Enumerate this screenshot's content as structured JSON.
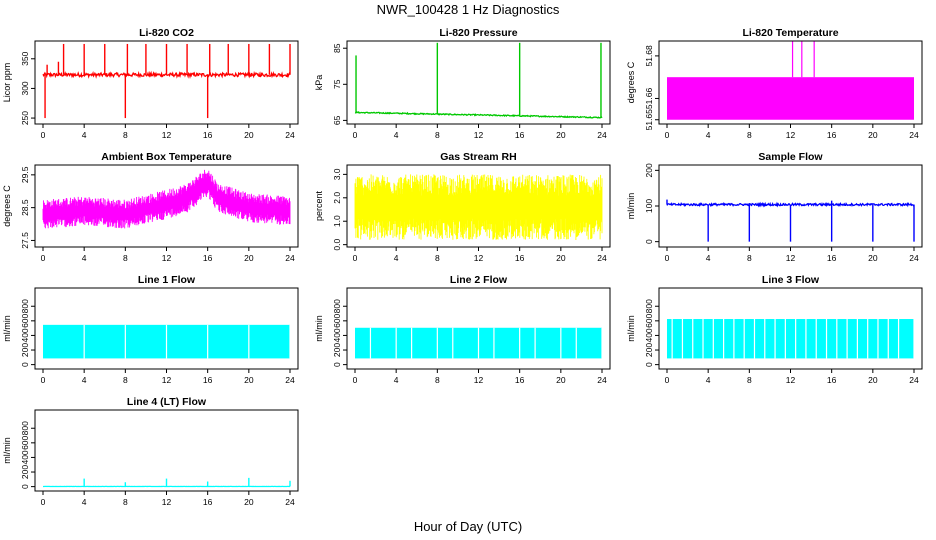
{
  "figure": {
    "title": "NWR_100428  1 Hz Diagnostics",
    "xlabel": "Hour of Day (UTC)"
  },
  "x_axis": {
    "range": [
      0,
      24
    ],
    "ticks": [
      "0",
      "4",
      "8",
      "12",
      "16",
      "20",
      "24"
    ]
  },
  "chart_data": [
    {
      "type": "line",
      "title": "Li-820 CO2",
      "ylabel": "Licor ppm",
      "ylim": [
        240,
        380
      ],
      "yticks": [
        {
          "value": 250,
          "label": "250"
        },
        {
          "value": 300,
          "label": "300"
        },
        {
          "value": 350,
          "label": "350"
        }
      ],
      "color": "#ff0000",
      "series": [
        {
          "baseline": 323,
          "noise": 3,
          "spikes": [
            [
              0.2,
              250
            ],
            [
              0.4,
              340
            ],
            [
              1.5,
              345
            ],
            [
              2,
              375
            ],
            [
              4,
              375
            ],
            [
              6,
              375
            ],
            [
              8,
              250
            ],
            [
              8.2,
              375
            ],
            [
              10,
              375
            ],
            [
              12,
              375
            ],
            [
              14,
              375
            ],
            [
              16,
              250
            ],
            [
              16.2,
              375
            ],
            [
              18,
              375
            ],
            [
              20,
              375
            ],
            [
              22,
              375
            ],
            [
              24,
              375
            ]
          ]
        }
      ]
    },
    {
      "type": "line",
      "title": "Li-820 Pressure",
      "ylabel": "kPa",
      "ylim": [
        64,
        87
      ],
      "yticks": [
        {
          "value": 65,
          "label": "65"
        },
        {
          "value": 75,
          "label": "75"
        },
        {
          "value": 85,
          "label": "85"
        }
      ],
      "color": "#00c800",
      "series": [
        {
          "start": 67.2,
          "end": 65.8,
          "noise": 0.15,
          "spikes": [
            [
              0.1,
              83
            ],
            [
              8,
              86.5
            ],
            [
              16,
              86.5
            ],
            [
              23.9,
              86.5
            ]
          ]
        }
      ]
    },
    {
      "type": "area",
      "title": "Li-820 Temperature",
      "ylabel": "degrees C",
      "ylim": [
        51.648,
        51.687
      ],
      "yticks": [
        {
          "value": 51.65,
          "label": "51.65"
        },
        {
          "value": 51.66,
          "label": "51.66"
        },
        {
          "value": 51.68,
          "label": "51.68"
        }
      ],
      "color": "#ff00ff",
      "series": [
        {
          "band": [
            51.65,
            51.67
          ],
          "spikes": [
            [
              12.2,
              51.687
            ],
            [
              13.1,
              51.687
            ],
            [
              14.3,
              51.687
            ]
          ]
        }
      ]
    },
    {
      "type": "area",
      "title": "Ambient Box Temperature",
      "ylabel": "degrees C",
      "ylim": [
        27.3,
        29.8
      ],
      "yticks": [
        {
          "value": 27.5,
          "label": "27.5"
        },
        {
          "value": 28.5,
          "label": "28.5"
        },
        {
          "value": 29.5,
          "label": "29.5"
        }
      ],
      "color": "#ff00ff",
      "series": [
        {
          "trend": [
            [
              0,
              28.3
            ],
            [
              4,
              28.4
            ],
            [
              8,
              28.3
            ],
            [
              12,
              28.6
            ],
            [
              14,
              28.8
            ],
            [
              16,
              29.3
            ],
            [
              17,
              28.8
            ],
            [
              20,
              28.5
            ],
            [
              24,
              28.4
            ]
          ],
          "spread": 0.45
        }
      ]
    },
    {
      "type": "area",
      "title": "Gas Stream RH",
      "ylabel": "percent",
      "ylim": [
        -0.1,
        3.4
      ],
      "yticks": [
        {
          "value": 0.0,
          "label": "0.0"
        },
        {
          "value": 1.0,
          "label": "1.0"
        },
        {
          "value": 2.0,
          "label": "2.0"
        },
        {
          "value": 3.0,
          "label": "3.0"
        }
      ],
      "color": "#ffff00",
      "series": [
        {
          "trend": [
            [
              0,
              1.6
            ],
            [
              24,
              1.6
            ]
          ],
          "spread": 1.4
        }
      ]
    },
    {
      "type": "line",
      "title": "Sample Flow",
      "ylabel": "ml/min",
      "ylim": [
        -15,
        215
      ],
      "yticks": [
        {
          "value": 0,
          "label": "0"
        },
        {
          "value": 100,
          "label": "100"
        },
        {
          "value": 200,
          "label": "200"
        }
      ],
      "color": "#0000ff",
      "series": [
        {
          "baseline": 104,
          "noise": 3,
          "spikes": [
            [
              0,
              118
            ],
            [
              4,
              0
            ],
            [
              8,
              0
            ],
            [
              12,
              0
            ],
            [
              16,
              0
            ],
            [
              16,
              115
            ],
            [
              20,
              0
            ],
            [
              24,
              0
            ]
          ]
        }
      ]
    },
    {
      "type": "area",
      "title": "Line 1 Flow",
      "ylabel": "ml/min",
      "ylim": [
        -60,
        1050
      ],
      "yticks": [
        {
          "value": 0,
          "label": "0"
        },
        {
          "value": 200,
          "label": "200"
        },
        {
          "value": 400,
          "label": "400"
        },
        {
          "value": 600,
          "label": "600"
        },
        {
          "value": 800,
          "label": "800"
        }
      ],
      "color": "#00ffff",
      "series": [
        {
          "band": [
            85,
            545
          ],
          "gaps": [
            4,
            8,
            12,
            16,
            20,
            24
          ]
        }
      ]
    },
    {
      "type": "area",
      "title": "Line 2 Flow",
      "ylabel": "ml/min",
      "ylim": [
        -60,
        1050
      ],
      "yticks": [
        {
          "value": 0,
          "label": "0"
        },
        {
          "value": 200,
          "label": "200"
        },
        {
          "value": 400,
          "label": "400"
        },
        {
          "value": 600,
          "label": "600"
        },
        {
          "value": 800,
          "label": "800"
        }
      ],
      "color": "#00ffff",
      "series": [
        {
          "band": [
            85,
            505
          ],
          "gaps": [
            1.5,
            4,
            5.5,
            8,
            9.5,
            12,
            13.5,
            16,
            17.5,
            20,
            21.5,
            24
          ]
        }
      ]
    },
    {
      "type": "area",
      "title": "Line 3 Flow",
      "ylabel": "ml/min",
      "ylim": [
        -60,
        1050
      ],
      "yticks": [
        {
          "value": 0,
          "label": "0"
        },
        {
          "value": 200,
          "label": "200"
        },
        {
          "value": 400,
          "label": "400"
        },
        {
          "value": 600,
          "label": "600"
        },
        {
          "value": 800,
          "label": "800"
        }
      ],
      "color": "#00ffff",
      "series": [
        {
          "band": [
            85,
            625
          ],
          "gaps": [
            0.5,
            1.5,
            2.5,
            3.5,
            4.5,
            5.5,
            6.5,
            7.5,
            8.5,
            9.5,
            10.5,
            11.5,
            12.5,
            13.5,
            14.5,
            15.5,
            16.5,
            17.5,
            18.5,
            19.5,
            20.5,
            21.5,
            22.5,
            24
          ]
        }
      ]
    },
    {
      "type": "line",
      "title": "Line 4 (LT) Flow",
      "ylabel": "ml/min",
      "ylim": [
        -60,
        1050
      ],
      "yticks": [
        {
          "value": 0,
          "label": "0"
        },
        {
          "value": 200,
          "label": "200"
        },
        {
          "value": 400,
          "label": "400"
        },
        {
          "value": 600,
          "label": "600"
        },
        {
          "value": 800,
          "label": "800"
        }
      ],
      "color": "#00ffff",
      "series": [
        {
          "baseline": 2,
          "noise": 1,
          "spikes": [
            [
              4,
              110
            ],
            [
              8,
              60
            ],
            [
              12,
              110
            ],
            [
              16,
              70
            ],
            [
              20,
              120
            ],
            [
              24,
              80
            ]
          ]
        }
      ]
    }
  ]
}
